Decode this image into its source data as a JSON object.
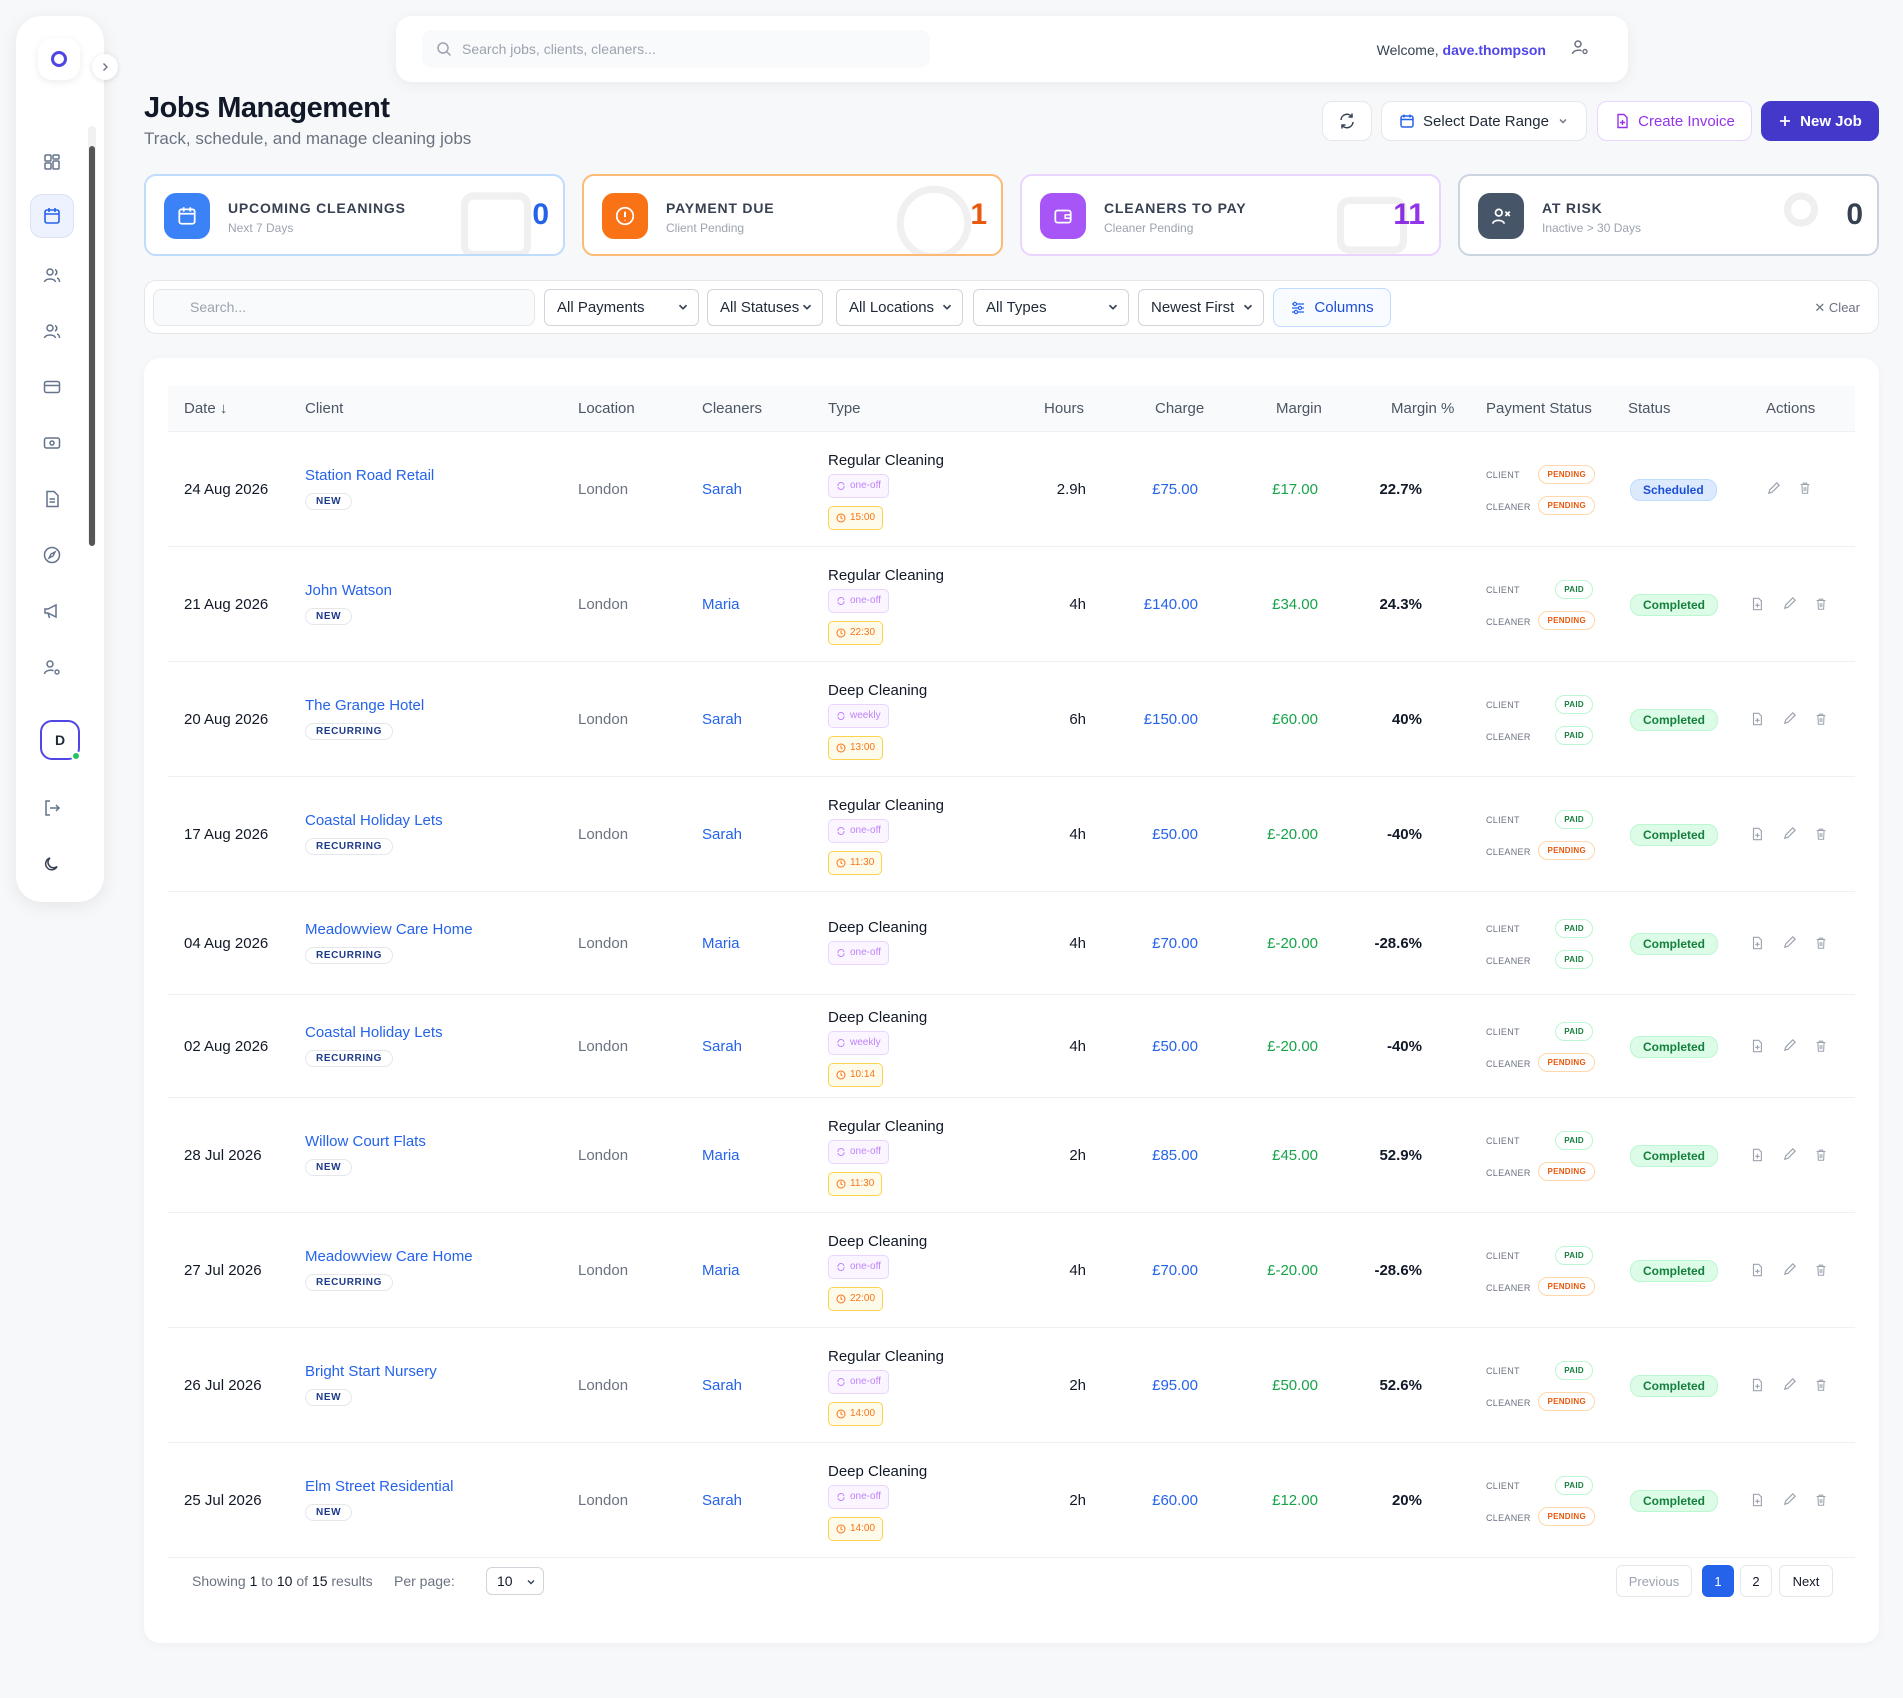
{
  "topbar": {
    "search_placeholder": "Search jobs, clients, cleaners...",
    "welcome": "Welcome,",
    "username": "dave.thompson"
  },
  "page": {
    "title": "Jobs Management",
    "subtitle": "Track, schedule, and manage cleaning jobs"
  },
  "actions": {
    "date_range": "Select Date Range",
    "create_invoice": "Create Invoice",
    "new_job": "New Job"
  },
  "cards": [
    {
      "title": "UPCOMING CLEANINGS",
      "sub": "Next 7 Days",
      "value": "0",
      "color": "#3b82f6"
    },
    {
      "title": "PAYMENT DUE",
      "sub": "Client Pending",
      "value": "1",
      "color": "#f97316"
    },
    {
      "title": "CLEANERS TO PAY",
      "sub": "Cleaner Pending",
      "value": "11",
      "color": "#a855f7"
    },
    {
      "title": "AT RISK",
      "sub": "Inactive > 30 Days",
      "value": "0",
      "color": "#475569"
    }
  ],
  "filters": {
    "search_placeholder": "Search...",
    "payments": "All Payments",
    "statuses": "All Statuses",
    "locations": "All Locations",
    "types": "All Types",
    "sort": "Newest First",
    "columns": "Columns",
    "clear": "Clear"
  },
  "table": {
    "headers": {
      "date": "Date",
      "client": "Client",
      "location": "Location",
      "cleaners": "Cleaners",
      "type": "Type",
      "hours": "Hours",
      "charge": "Charge",
      "margin": "Margin",
      "margin_pct": "Margin %",
      "payment_status": "Payment Status",
      "status": "Status",
      "actions": "Actions"
    },
    "client_label": "CLIENT",
    "cleaner_label": "CLEANER",
    "rows": [
      {
        "date": "24 Aug 2026",
        "client": "Station Road Retail",
        "tag": "NEW",
        "location": "London",
        "cleaner": "Sarah",
        "type": "Regular Cleaning",
        "freq": "one-off",
        "time": "15:00",
        "hours": "2.9h",
        "charge": "£75.00",
        "margin": "£17.00",
        "margin_pct": "22.7%",
        "client_pay": "PENDING",
        "cleaner_pay": "PENDING",
        "status": "Scheduled"
      },
      {
        "date": "21 Aug 2026",
        "client": "John Watson",
        "tag": "NEW",
        "location": "London",
        "cleaner": "Maria",
        "type": "Regular Cleaning",
        "freq": "one-off",
        "time": "22:30",
        "hours": "4h",
        "charge": "£140.00",
        "margin": "£34.00",
        "margin_pct": "24.3%",
        "client_pay": "PAID",
        "cleaner_pay": "PENDING",
        "status": "Completed"
      },
      {
        "date": "20 Aug 2026",
        "client": "The Grange Hotel",
        "tag": "RECURRING",
        "location": "London",
        "cleaner": "Sarah",
        "type": "Deep Cleaning",
        "freq": "weekly",
        "time": "13:00",
        "hours": "6h",
        "charge": "£150.00",
        "margin": "£60.00",
        "margin_pct": "40%",
        "client_pay": "PAID",
        "cleaner_pay": "PAID",
        "status": "Completed"
      },
      {
        "date": "17 Aug 2026",
        "client": "Coastal Holiday Lets",
        "tag": "RECURRING",
        "location": "London",
        "cleaner": "Sarah",
        "type": "Regular Cleaning",
        "freq": "one-off",
        "time": "11:30",
        "hours": "4h",
        "charge": "£50.00",
        "margin": "£-20.00",
        "margin_pct": "-40%",
        "client_pay": "PAID",
        "cleaner_pay": "PENDING",
        "status": "Completed"
      },
      {
        "date": "04 Aug 2026",
        "client": "Meadowview Care Home",
        "tag": "RECURRING",
        "location": "London",
        "cleaner": "Maria",
        "type": "Deep Cleaning",
        "freq": "one-off",
        "time": "",
        "hours": "4h",
        "charge": "£70.00",
        "margin": "£-20.00",
        "margin_pct": "-28.6%",
        "client_pay": "PAID",
        "cleaner_pay": "PAID",
        "status": "Completed"
      },
      {
        "date": "02 Aug 2026",
        "client": "Coastal Holiday Lets",
        "tag": "RECURRING",
        "location": "London",
        "cleaner": "Sarah",
        "type": "Deep Cleaning",
        "freq": "weekly",
        "time": "10:14",
        "hours": "4h",
        "charge": "£50.00",
        "margin": "£-20.00",
        "margin_pct": "-40%",
        "client_pay": "PAID",
        "cleaner_pay": "PENDING",
        "status": "Completed"
      },
      {
        "date": "28 Jul 2026",
        "client": "Willow Court Flats",
        "tag": "NEW",
        "location": "London",
        "cleaner": "Maria",
        "type": "Regular Cleaning",
        "freq": "one-off",
        "time": "11:30",
        "hours": "2h",
        "charge": "£85.00",
        "margin": "£45.00",
        "margin_pct": "52.9%",
        "client_pay": "PAID",
        "cleaner_pay": "PENDING",
        "status": "Completed"
      },
      {
        "date": "27 Jul 2026",
        "client": "Meadowview Care Home",
        "tag": "RECURRING",
        "location": "London",
        "cleaner": "Maria",
        "type": "Deep Cleaning",
        "freq": "one-off",
        "time": "22:00",
        "hours": "4h",
        "charge": "£70.00",
        "margin": "£-20.00",
        "margin_pct": "-28.6%",
        "client_pay": "PAID",
        "cleaner_pay": "PENDING",
        "status": "Completed"
      },
      {
        "date": "26 Jul 2026",
        "client": "Bright Start Nursery",
        "tag": "NEW",
        "location": "London",
        "cleaner": "Sarah",
        "type": "Regular Cleaning",
        "freq": "one-off",
        "time": "14:00",
        "hours": "2h",
        "charge": "£95.00",
        "margin": "£50.00",
        "margin_pct": "52.6%",
        "client_pay": "PAID",
        "cleaner_pay": "PENDING",
        "status": "Completed"
      },
      {
        "date": "25 Jul 2026",
        "client": "Elm Street Residential",
        "tag": "NEW",
        "location": "London",
        "cleaner": "Sarah",
        "type": "Deep Cleaning",
        "freq": "one-off",
        "time": "14:00",
        "hours": "2h",
        "charge": "£60.00",
        "margin": "£12.00",
        "margin_pct": "20%",
        "client_pay": "PAID",
        "cleaner_pay": "PENDING",
        "status": "Completed"
      }
    ]
  },
  "pagination": {
    "showing": "Showing",
    "from": "1",
    "to_word": "to",
    "to": "10",
    "of_word": "of",
    "total": "15",
    "results": "results",
    "per_page_label": "Per page:",
    "per_page": "10",
    "previous": "Previous",
    "pages": [
      "1",
      "2"
    ],
    "next": "Next"
  },
  "sidebar": {
    "avatar_initial": "D"
  }
}
